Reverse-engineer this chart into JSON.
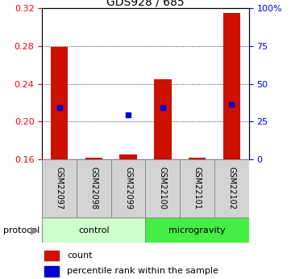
{
  "title": "GDS928 / 685",
  "samples": [
    "GSM22097",
    "GSM22098",
    "GSM22099",
    "GSM22100",
    "GSM22101",
    "GSM22102"
  ],
  "bar_bottom": 0.16,
  "bar_tops": [
    0.279,
    0.161,
    0.165,
    0.245,
    0.161,
    0.315
  ],
  "blue_dots": [
    0.215,
    null,
    0.207,
    0.215,
    null,
    0.218
  ],
  "ylim": [
    0.16,
    0.32
  ],
  "yticks_left": [
    0.16,
    0.2,
    0.24,
    0.28,
    0.32
  ],
  "yticks_right": [
    0,
    25,
    50,
    75,
    100
  ],
  "bar_color": "#cc1100",
  "dot_color": "#0000cc",
  "control_color": "#ccffcc",
  "microgravity_color": "#44ee44",
  "sample_box_color": "#d3d3d3",
  "group_info": [
    {
      "label": "control",
      "start": 0,
      "end": 3,
      "color": "#ccffcc"
    },
    {
      "label": "microgravity",
      "start": 3,
      "end": 6,
      "color": "#44ee44"
    }
  ],
  "title_fontsize": 10,
  "tick_fontsize": 8,
  "label_fontsize": 8,
  "legend_fontsize": 8
}
